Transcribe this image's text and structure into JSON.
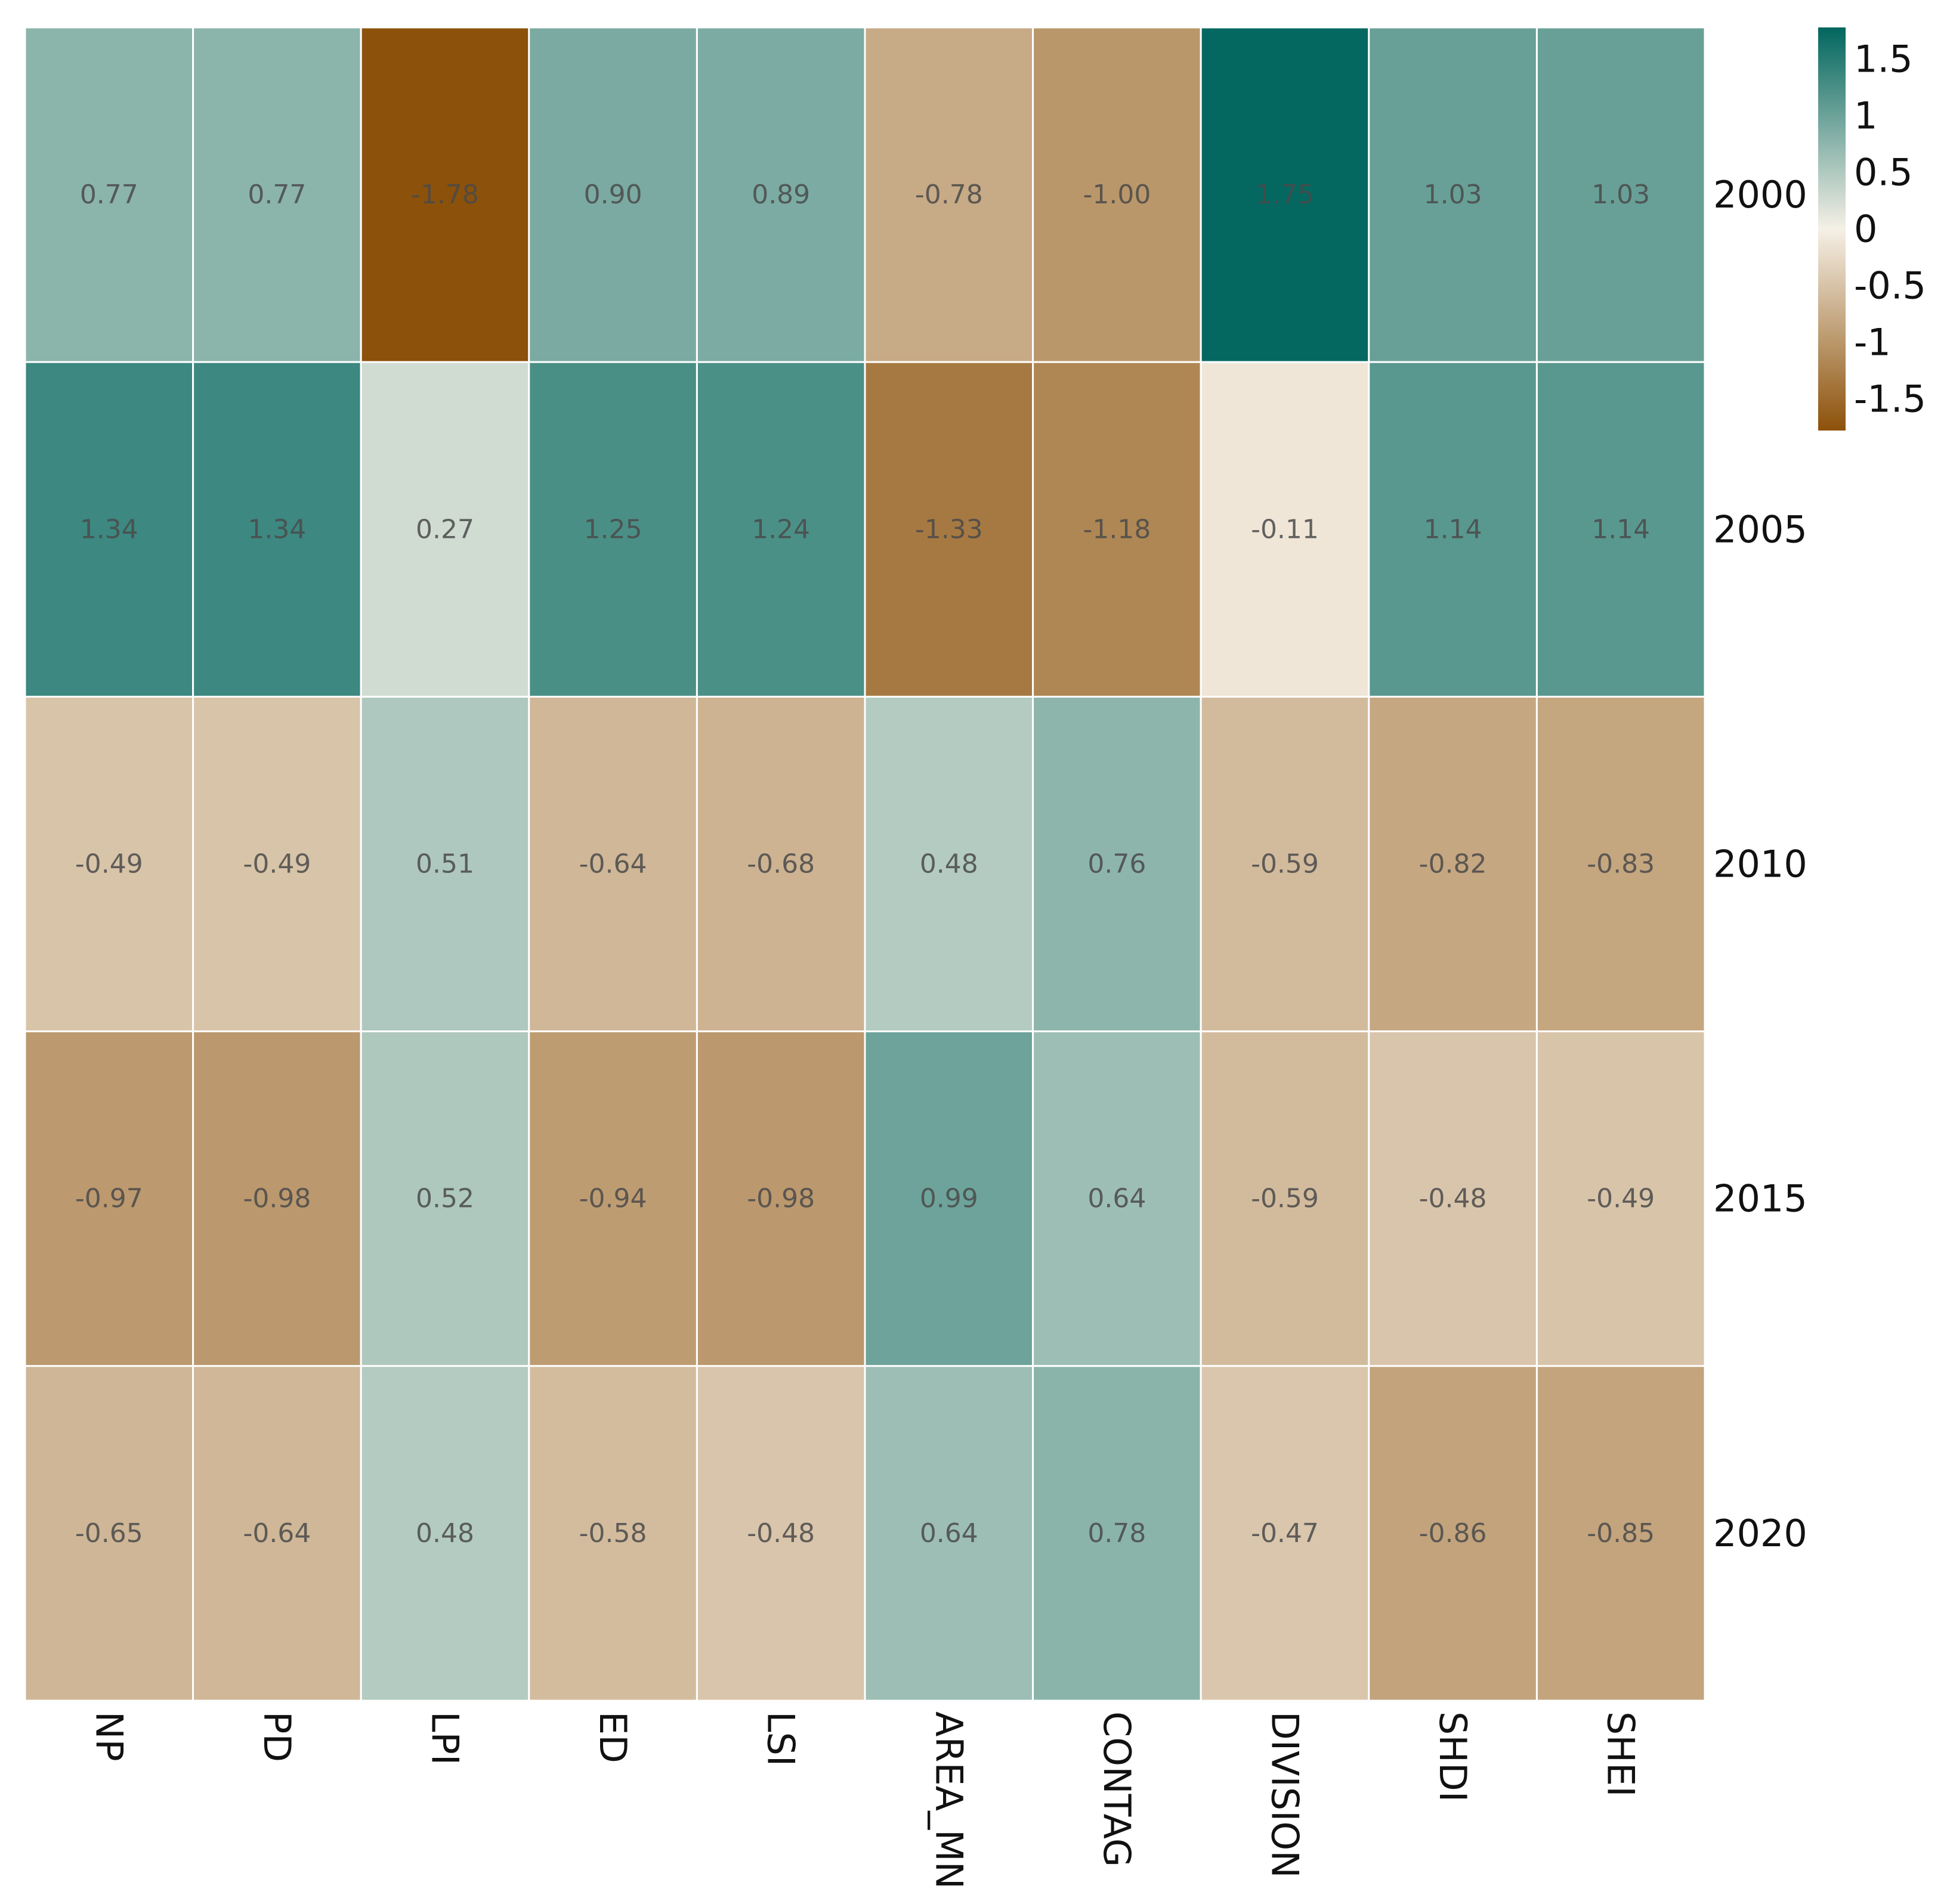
{
  "chart_data": {
    "type": "heatmap",
    "title": "",
    "xlabel": "",
    "ylabel": "",
    "columns": [
      "NP",
      "PD",
      "LPI",
      "ED",
      "LSI",
      "AREA_MN",
      "CONTAG",
      "DIVISION",
      "SHDI",
      "SHEI"
    ],
    "rows": [
      "2000",
      "2005",
      "2010",
      "2015",
      "2020"
    ],
    "values": [
      [
        0.77,
        0.77,
        -1.78,
        0.9,
        0.89,
        -0.78,
        -1.0,
        1.75,
        1.03,
        1.03
      ],
      [
        1.34,
        1.34,
        0.27,
        1.25,
        1.24,
        -1.33,
        -1.18,
        -0.11,
        1.14,
        1.14
      ],
      [
        -0.49,
        -0.49,
        0.51,
        -0.64,
        -0.68,
        0.48,
        0.76,
        -0.59,
        -0.82,
        -0.83
      ],
      [
        -0.97,
        -0.98,
        0.52,
        -0.94,
        -0.98,
        0.99,
        0.64,
        -0.59,
        -0.48,
        -0.49
      ],
      [
        -0.65,
        -0.64,
        0.48,
        -0.58,
        -0.48,
        0.64,
        0.78,
        -0.47,
        -0.86,
        -0.85
      ]
    ],
    "value_labels": [
      [
        "0.77",
        "0.77",
        "-1.78",
        "0.90",
        "0.89",
        "-0.78",
        "-1.00",
        "1.75",
        "1.03",
        "1.03"
      ],
      [
        "1.34",
        "1.34",
        "0.27",
        "1.25",
        "1.24",
        "-1.33",
        "-1.18",
        "-0.11",
        "1.14",
        "1.14"
      ],
      [
        "-0.49",
        "-0.49",
        "0.51",
        "-0.64",
        "-0.68",
        "0.48",
        "0.76",
        "-0.59",
        "-0.82",
        "-0.83"
      ],
      [
        "-0.97",
        "-0.98",
        "0.52",
        "-0.94",
        "-0.98",
        "0.99",
        "0.64",
        "-0.59",
        "-0.48",
        "-0.49"
      ],
      [
        "-0.65",
        "-0.64",
        "0.48",
        "-0.58",
        "-0.48",
        "0.64",
        "0.78",
        "-0.47",
        "-0.86",
        "-0.85"
      ]
    ],
    "color_scale": {
      "range": [
        -1.78,
        1.78
      ],
      "low_color": "#8c510a",
      "mid_color": "#f5f0e6",
      "high_color": "#01665e",
      "ticks": [
        1.5,
        1,
        0.5,
        0,
        -0.5,
        -1,
        -1.5
      ],
      "tick_labels": [
        "1.5",
        "1",
        "0.5",
        "0",
        "-0.5",
        "-1",
        "-1.5"
      ],
      "position": "top-right"
    },
    "row_labels_position": "right",
    "column_labels_position": "bottom",
    "column_label_rotation": "vertical"
  }
}
